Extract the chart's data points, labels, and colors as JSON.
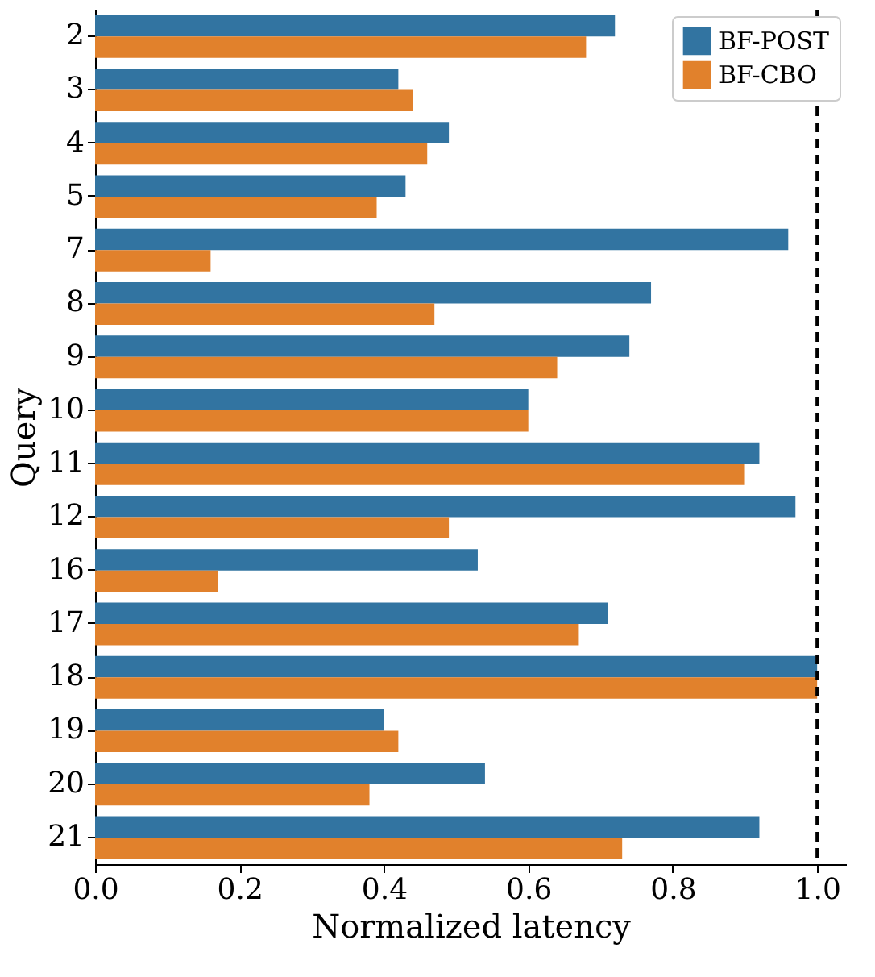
{
  "chart_data": {
    "type": "bar",
    "orientation": "horizontal",
    "xlabel": "Normalized latency",
    "ylabel": "Query",
    "categories": [
      "2",
      "3",
      "4",
      "5",
      "7",
      "8",
      "9",
      "10",
      "11",
      "12",
      "16",
      "17",
      "18",
      "19",
      "20",
      "21"
    ],
    "series": [
      {
        "name": "BF-POST",
        "color": "#3274a1",
        "values": [
          0.72,
          0.42,
          0.49,
          0.43,
          0.96,
          0.77,
          0.74,
          0.6,
          0.92,
          0.97,
          0.53,
          0.71,
          1.0,
          0.4,
          0.54,
          0.92
        ]
      },
      {
        "name": "BF-CBO",
        "color": "#e1812c",
        "values": [
          0.68,
          0.44,
          0.46,
          0.39,
          0.16,
          0.47,
          0.64,
          0.6,
          0.9,
          0.49,
          0.17,
          0.67,
          1.0,
          0.42,
          0.38,
          0.73
        ]
      }
    ],
    "xlim": [
      0,
      1.04
    ],
    "xticks": [
      {
        "value": 0,
        "label": "0.0"
      },
      {
        "value": 0.2,
        "label": "0.2"
      },
      {
        "value": 0.4,
        "label": "0.4"
      },
      {
        "value": 0.6,
        "label": "0.6"
      },
      {
        "value": 0.8,
        "label": "0.8"
      },
      {
        "value": 1,
        "label": "1.0"
      }
    ],
    "ref_lines": [
      {
        "axis": "x",
        "value": 1,
        "color": "#000000",
        "line_style": "dashed"
      }
    ],
    "legend": "top right",
    "grid": false
  }
}
